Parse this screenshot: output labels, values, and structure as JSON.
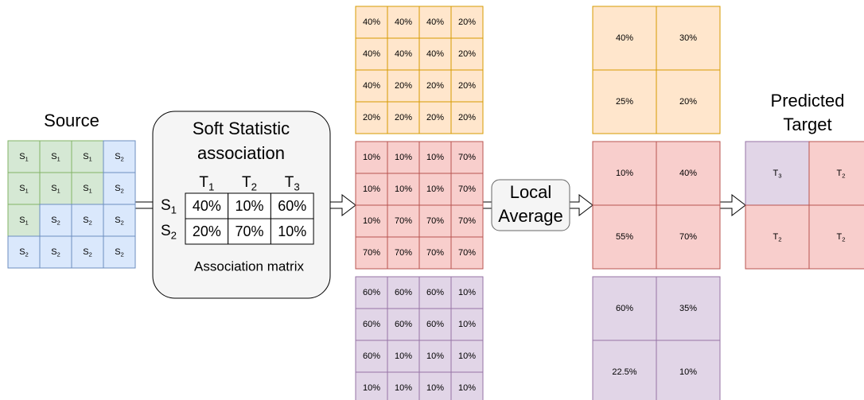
{
  "source": {
    "title": "Source",
    "cells": [
      [
        [
          "S",
          "1"
        ],
        [
          "S",
          "1"
        ],
        [
          "S",
          "1"
        ],
        [
          "S",
          "2"
        ]
      ],
      [
        [
          "S",
          "1"
        ],
        [
          "S",
          "1"
        ],
        [
          "S",
          "1"
        ],
        [
          "S",
          "2"
        ]
      ],
      [
        [
          "S",
          "1"
        ],
        [
          "S",
          "2"
        ],
        [
          "S",
          "2"
        ],
        [
          "S",
          "2"
        ]
      ],
      [
        [
          "S",
          "2"
        ],
        [
          "S",
          "2"
        ],
        [
          "S",
          "2"
        ],
        [
          "S",
          "2"
        ]
      ]
    ]
  },
  "association": {
    "title": [
      "Soft Statistic",
      "association"
    ],
    "columns": [
      [
        "T",
        "1"
      ],
      [
        "T",
        "2"
      ],
      [
        "T",
        "3"
      ]
    ],
    "rows": [
      [
        "S",
        "1"
      ],
      [
        "S",
        "2"
      ]
    ],
    "matrix": [
      [
        "40%",
        "10%",
        "60%"
      ],
      [
        "20%",
        "70%",
        "10%"
      ]
    ],
    "caption": "Association matrix"
  },
  "pixel_maps": [
    [
      [
        "40%",
        "40%",
        "40%",
        "20%"
      ],
      [
        "40%",
        "40%",
        "40%",
        "20%"
      ],
      [
        "40%",
        "20%",
        "20%",
        "20%"
      ],
      [
        "20%",
        "20%",
        "20%",
        "20%"
      ]
    ],
    [
      [
        "10%",
        "10%",
        "10%",
        "70%"
      ],
      [
        "10%",
        "10%",
        "10%",
        "70%"
      ],
      [
        "10%",
        "70%",
        "70%",
        "70%"
      ],
      [
        "70%",
        "70%",
        "70%",
        "70%"
      ]
    ],
    [
      [
        "60%",
        "60%",
        "60%",
        "10%"
      ],
      [
        "60%",
        "60%",
        "60%",
        "10%"
      ],
      [
        "60%",
        "10%",
        "10%",
        "10%"
      ],
      [
        "10%",
        "10%",
        "10%",
        "10%"
      ]
    ]
  ],
  "local_average": [
    "Local",
    "Average"
  ],
  "averaged_maps": [
    [
      [
        "40%",
        "30%"
      ],
      [
        "25%",
        "20%"
      ]
    ],
    [
      [
        "10%",
        "40%"
      ],
      [
        "55%",
        "70%"
      ]
    ],
    [
      [
        "60%",
        "35%"
      ],
      [
        "22.5%",
        "10%"
      ]
    ]
  ],
  "target": {
    "title": [
      "Predicted",
      "Target"
    ],
    "cells": [
      [
        [
          "T",
          "3"
        ],
        [
          "T",
          "2"
        ]
      ],
      [
        [
          "T",
          "2"
        ],
        [
          "T",
          "2"
        ]
      ]
    ]
  }
}
